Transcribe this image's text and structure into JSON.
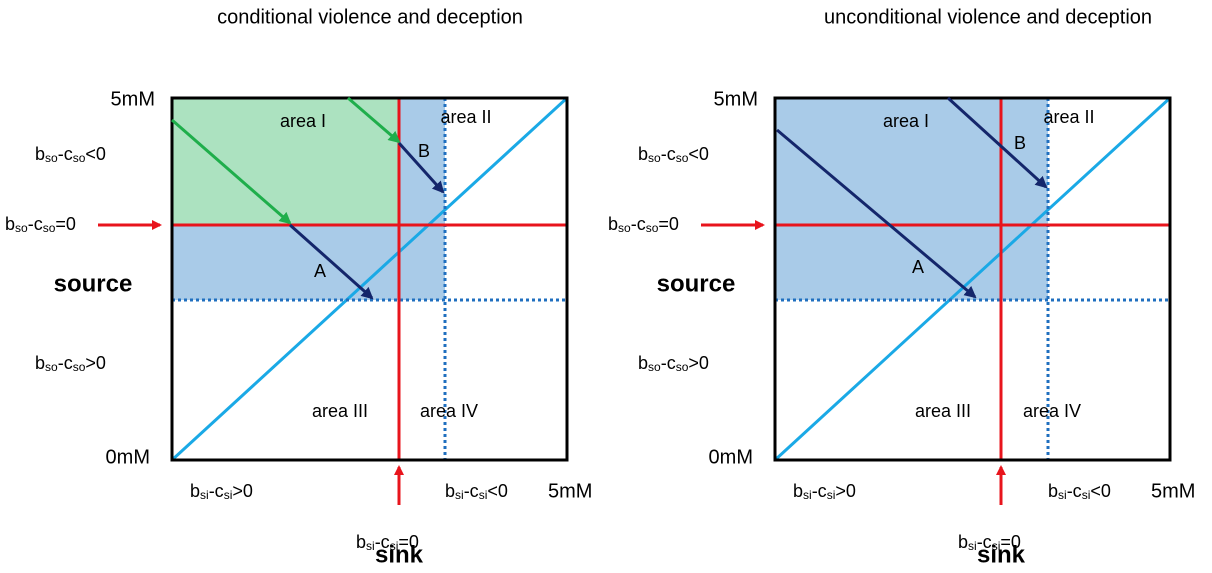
{
  "panels": [
    {
      "title": "conditional violence and deception",
      "y_top": "5mM",
      "y_bottom": "0mM",
      "x_right": "5mM",
      "y_axis_label": "source",
      "x_axis_label": "sink",
      "areas": [
        "area I",
        "area II",
        "area III",
        "area IV"
      ],
      "arrows": [
        "A",
        "B"
      ],
      "source_negative": [
        "b",
        "so",
        "-c",
        "so",
        "<0"
      ],
      "source_zero": [
        "b",
        "so",
        "-c",
        "so",
        "=0"
      ],
      "source_positive": [
        "b",
        "so",
        "-c",
        "so",
        ">0"
      ],
      "sink_positive": [
        "b",
        "si",
        "-c",
        "si",
        ">0"
      ],
      "sink_negative": [
        "b",
        "si",
        "-c",
        "si",
        "<0"
      ],
      "sink_zero": [
        "b",
        "si",
        "-c",
        "si",
        "=0"
      ]
    },
    {
      "title": "unconditional violence and deception",
      "y_top": "5mM",
      "y_bottom": "0mM",
      "x_right": "5mM",
      "y_axis_label": "source",
      "x_axis_label": "sink",
      "areas": [
        "area I",
        "area II",
        "area III",
        "area IV"
      ],
      "arrows": [
        "A",
        "B"
      ],
      "source_negative": [
        "b",
        "so",
        "-c",
        "so",
        "<0"
      ],
      "source_zero": [
        "b",
        "so",
        "-c",
        "so",
        "=0"
      ],
      "source_positive": [
        "b",
        "so",
        "-c",
        "so",
        ">0"
      ],
      "sink_positive": [
        "b",
        "si",
        "-c",
        "si",
        ">0"
      ],
      "sink_negative": [
        "b",
        "si",
        "-c",
        "si",
        "<0"
      ],
      "sink_zero": [
        "b",
        "si",
        "-c",
        "si",
        "=0"
      ]
    }
  ]
}
